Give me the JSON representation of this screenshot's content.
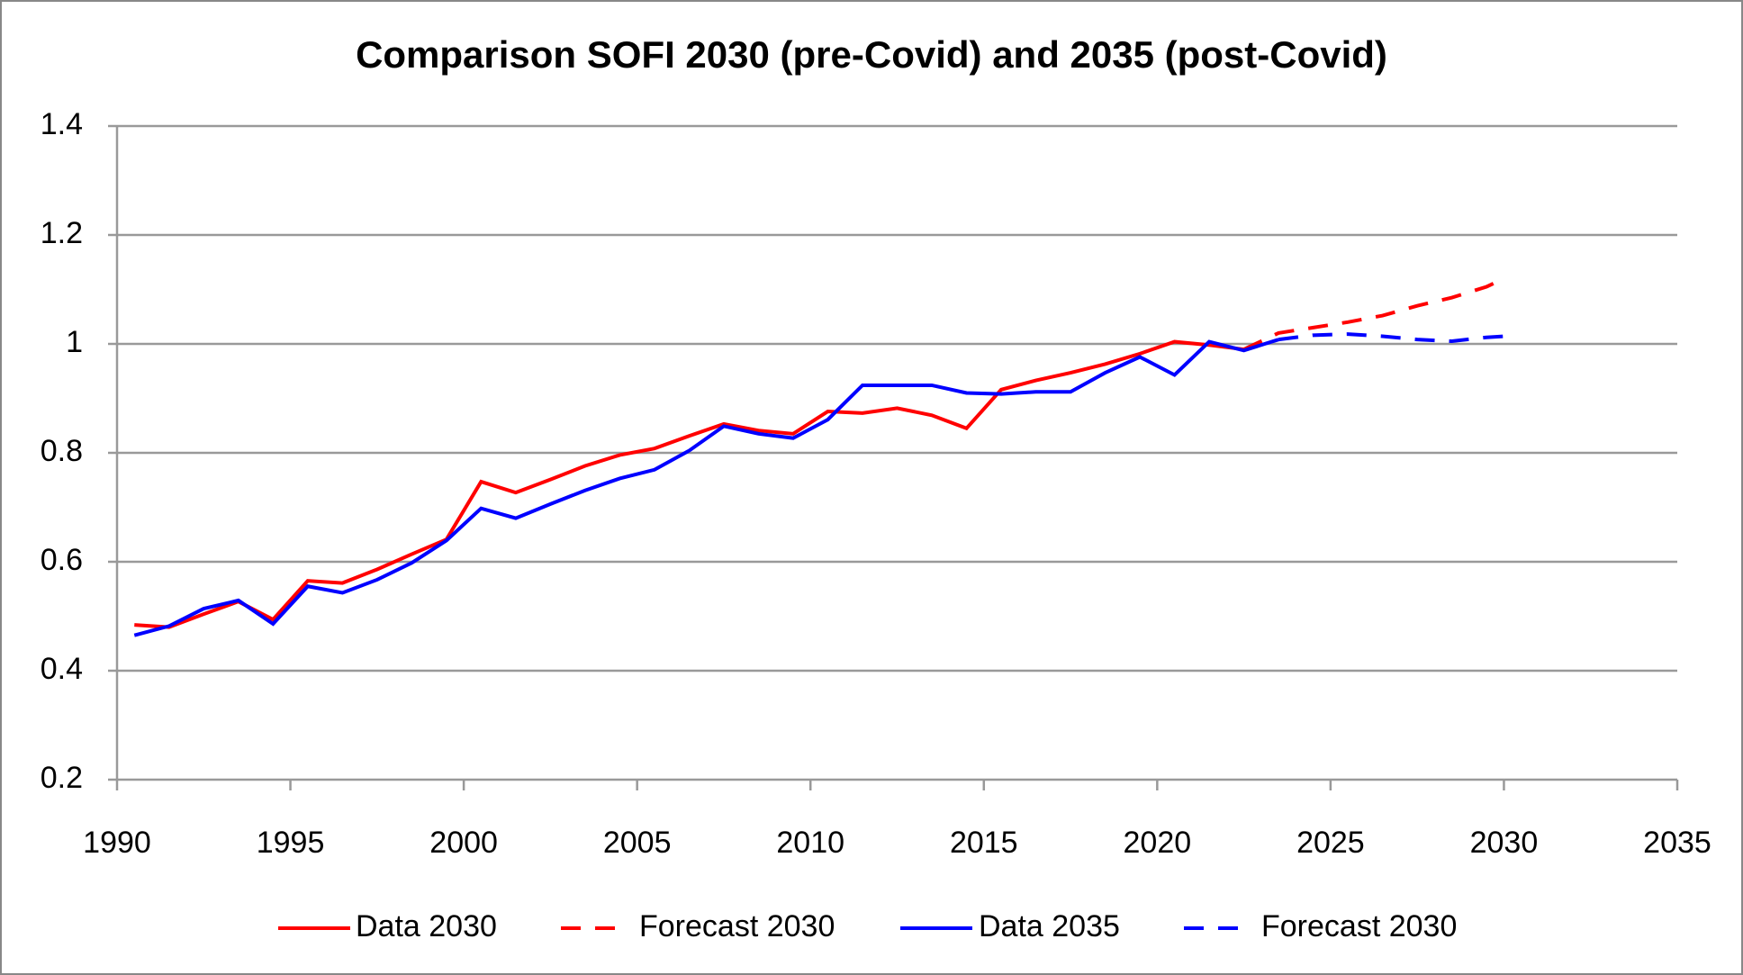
{
  "chart_data": {
    "type": "line",
    "title": "Comparison SOFI 2030 (pre-Covid) and 2035 (post-Covid)",
    "xlim": [
      1990,
      2035
    ],
    "xticks": [
      1990,
      1995,
      2000,
      2005,
      2010,
      2015,
      2020,
      2025,
      2030,
      2035
    ],
    "ylim": [
      0.2,
      1.4
    ],
    "yticks": [
      0.2,
      0.4,
      0.6,
      0.8,
      1,
      1.2,
      1.4
    ],
    "grid": true,
    "legend": "bottom",
    "series": [
      {
        "name": "Data 2030",
        "color": "#ff0000",
        "style": "solid",
        "x": [
          1990.5,
          1991.5,
          1992.5,
          1993.5,
          1994.5,
          1995.5,
          1996.5,
          1997.5,
          1998.5,
          1999.5,
          2000.5,
          2001.5,
          2002.5,
          2003.5,
          2004.5,
          2005.5,
          2006.5,
          2007.5,
          2008.5,
          2009.5,
          2010.5,
          2011.5,
          2012.5,
          2013.5,
          2014.5,
          2015.5,
          2016.5,
          2017.5,
          2018.5,
          2019.5,
          2020.5,
          2021.5,
          2022.5
        ],
        "values": [
          0.484,
          0.48,
          0.504,
          0.527,
          0.494,
          0.565,
          0.561,
          0.586,
          0.614,
          0.641,
          0.747,
          0.727,
          0.751,
          0.776,
          0.796,
          0.808,
          0.831,
          0.853,
          0.841,
          0.835,
          0.876,
          0.873,
          0.882,
          0.869,
          0.845,
          0.916,
          0.933,
          0.947,
          0.963,
          0.982,
          1.004,
          0.998,
          0.99
        ]
      },
      {
        "name": "Forecast 2030",
        "color": "#ff0000",
        "style": "dashed",
        "x": [
          2022.5,
          2023.5,
          2024.5,
          2025.5,
          2026.5,
          2027.5,
          2028.5,
          2029.5,
          2030
        ],
        "values": [
          0.99,
          1.02,
          1.03,
          1.04,
          1.052,
          1.07,
          1.085,
          1.105,
          1.12
        ]
      },
      {
        "name": "Data 2035",
        "color": "#0000ff",
        "style": "solid",
        "x": [
          1990.5,
          1991.5,
          1992.5,
          1993.5,
          1994.5,
          1995.5,
          1996.5,
          1997.5,
          1998.5,
          1999.5,
          2000.5,
          2001.5,
          2002.5,
          2003.5,
          2004.5,
          2005.5,
          2006.5,
          2007.5,
          2008.5,
          2009.5,
          2010.5,
          2011.5,
          2012.5,
          2013.5,
          2014.5,
          2015.5,
          2016.5,
          2017.5,
          2018.5,
          2019.5,
          2020.5,
          2021.5,
          2022.5,
          2023.5
        ],
        "values": [
          0.465,
          0.482,
          0.514,
          0.529,
          0.486,
          0.555,
          0.543,
          0.567,
          0.598,
          0.639,
          0.698,
          0.68,
          0.706,
          0.731,
          0.753,
          0.769,
          0.804,
          0.849,
          0.835,
          0.827,
          0.861,
          0.924,
          0.924,
          0.924,
          0.91,
          0.908,
          0.912,
          0.912,
          0.947,
          0.976,
          0.943,
          1.004,
          0.988,
          1.008
        ]
      },
      {
        "name": "Forecast 2030",
        "color": "#0000ff",
        "style": "dashed",
        "x": [
          2023.5,
          2024.5,
          2025.5,
          2026.5,
          2027.5,
          2028.5,
          2029.5,
          2030
        ],
        "values": [
          1.008,
          1.016,
          1.018,
          1.014,
          1.008,
          1.005,
          1.012,
          1.014
        ]
      }
    ]
  }
}
